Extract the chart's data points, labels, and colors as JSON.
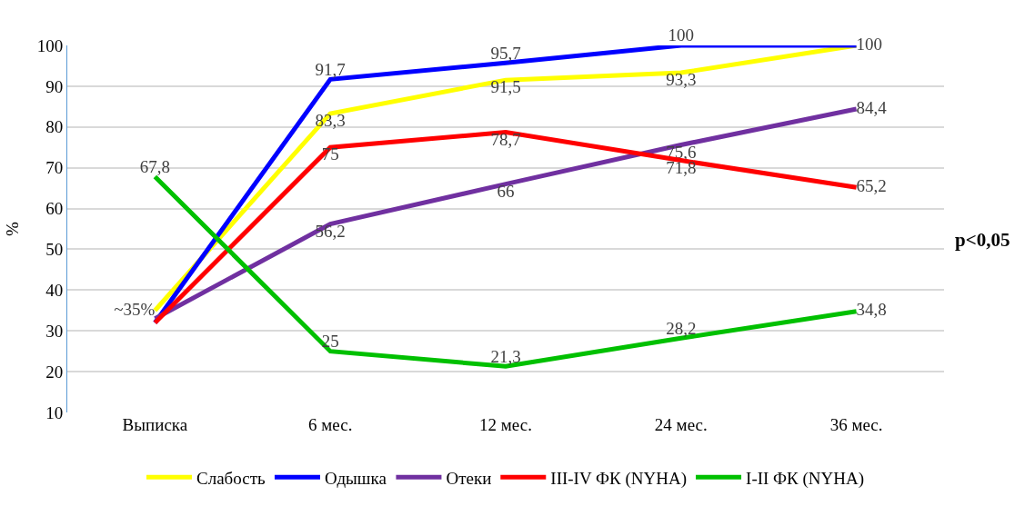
{
  "chart_data": {
    "type": "line",
    "ylabel": "%",
    "categories": [
      "Выписка",
      "6 мес.",
      "12 мес.",
      "24 мес.",
      "36 мес."
    ],
    "series": [
      {
        "name": "Слабость",
        "color": "#ffff00",
        "values": [
          35,
          83.3,
          91.5,
          93.3,
          100
        ],
        "value_labels": [
          "~35%",
          "83,3",
          "91,5",
          "93,3",
          null
        ]
      },
      {
        "name": "Одышка",
        "color": "#0000ff",
        "values": [
          32,
          91.7,
          95.7,
          100,
          100
        ],
        "value_labels": [
          null,
          "91,7",
          "95,7",
          "100",
          "100"
        ]
      },
      {
        "name": "Отеки",
        "color": "#7030a0",
        "values": [
          33,
          56.2,
          66,
          75.6,
          84.4
        ],
        "value_labels": [
          null,
          "56,2",
          "66",
          "75,6",
          "84,4"
        ]
      },
      {
        "name": "III-IV ФК (NYHA)",
        "color": "#ff0000",
        "values": [
          32,
          75,
          78.7,
          71.8,
          65.2
        ],
        "value_labels": [
          null,
          "75",
          "78,7",
          "71,8",
          "65,2"
        ]
      },
      {
        "name": "I-II ФК (NYHA)",
        "color": "#00c000",
        "values": [
          67.8,
          25,
          21.3,
          28.2,
          34.8
        ],
        "value_labels": [
          "67,8",
          "25",
          "21,3",
          "28,2",
          "34,8"
        ]
      }
    ],
    "ylim": [
      10,
      100
    ],
    "yticks": [
      10,
      20,
      30,
      40,
      50,
      60,
      70,
      80,
      90,
      100
    ],
    "grid": "y",
    "legend": "bottom",
    "marker": "none",
    "line_style": "solid",
    "annotations": [
      "p<0,05"
    ]
  }
}
